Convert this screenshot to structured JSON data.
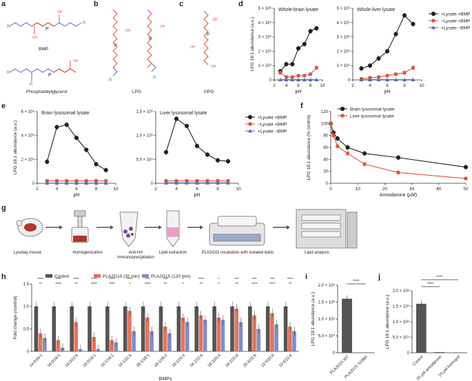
{
  "panel_labels": {
    "a": "a",
    "b": "b",
    "c": "c",
    "d": "d",
    "e": "e",
    "f": "f",
    "g": "g",
    "h": "h",
    "i": "i",
    "j": "j"
  },
  "structures": {
    "bmp": "BMP",
    "pg": "Phosphatidylglycerol",
    "lpg": "LPG",
    "gpg": "GPG"
  },
  "workflow": {
    "steps": [
      {
        "id": "lysotag",
        "label": "Lysotag mouse"
      },
      {
        "id": "homog",
        "label": "Homogenization"
      },
      {
        "id": "ip",
        "label": "Anti-HA immunoprecipitation"
      },
      {
        "id": "extract",
        "label": "Lipid extraction"
      },
      {
        "id": "incub",
        "label": "PLA2G15 incubation with isolated lipids"
      },
      {
        "id": "analysis",
        "label": "Lipid analysis"
      }
    ]
  },
  "chart_data": [
    {
      "id": "d1",
      "type": "line",
      "title": "Whole-brain lysate",
      "ylabel": "LPG 18:1 abundance (a.u.)",
      "xlabel": "pH",
      "xlim": [
        2,
        10
      ],
      "ylim": [
        0,
        5000000
      ],
      "xticks": [
        "2",
        "4",
        "6",
        "8",
        "10"
      ],
      "yticks": [
        "0",
        "1 × 10⁶",
        "2 × 10⁶",
        "3 × 10⁶",
        "4 × 10⁶",
        "5 × 10⁶"
      ],
      "series": [
        {
          "name": "+Lysate +BMP",
          "color": "#222222",
          "marker": "circle",
          "x": [
            3,
            4,
            5,
            6,
            7,
            8,
            9
          ],
          "values": [
            600000,
            1100000,
            1100000,
            2200000,
            2500000,
            3400000,
            3600000
          ]
        },
        {
          "name": "−Lysate +BMP",
          "color": "#e0533f",
          "marker": "square",
          "x": [
            3,
            4,
            5,
            6,
            7,
            8,
            9
          ],
          "values": [
            500000,
            200000,
            200000,
            300000,
            300000,
            400000,
            850000
          ]
        },
        {
          "name": "+Lysate −BMP",
          "color": "#5b6fb4",
          "marker": "triangle",
          "x": [
            3,
            4,
            5,
            6,
            7,
            8,
            9
          ],
          "values": [
            20000,
            20000,
            20000,
            20000,
            20000,
            20000,
            20000
          ]
        }
      ]
    },
    {
      "id": "d2",
      "type": "line",
      "title": "Whole-liver lysate",
      "xlabel": "pH",
      "xlim": [
        2,
        10
      ],
      "ylim": [
        0,
        5000000
      ],
      "xticks": [
        "2",
        "4",
        "6",
        "8",
        "10"
      ],
      "yticks": [
        "0",
        "1 × 10⁶",
        "2 × 10⁶",
        "3 × 10⁶",
        "4 × 10⁶",
        "5 × 10⁶"
      ],
      "legend": [
        "+Lysate +BMP",
        "−Lysate +BMP",
        "+Lysate −BMP"
      ],
      "series": [
        {
          "name": "+Lysate +BMP",
          "color": "#222222",
          "marker": "circle",
          "x": [
            3,
            4,
            5,
            6,
            7,
            8,
            9
          ],
          "values": [
            800000,
            1000000,
            1500000,
            2000000,
            3200000,
            4500000,
            3900000
          ]
        },
        {
          "name": "−Lysate +BMP",
          "color": "#e0533f",
          "marker": "square",
          "x": [
            3,
            4,
            5,
            6,
            7,
            8,
            9
          ],
          "values": [
            80000,
            150000,
            200000,
            300000,
            400000,
            500000,
            850000
          ]
        },
        {
          "name": "+Lysate −BMP",
          "color": "#5b6fb4",
          "marker": "triangle",
          "x": [
            3,
            4,
            5,
            6,
            7,
            8,
            9
          ],
          "values": [
            20000,
            20000,
            20000,
            20000,
            20000,
            20000,
            20000
          ]
        }
      ]
    },
    {
      "id": "e1",
      "type": "line",
      "title": "Brain lysosomal lysate",
      "ylabel": "LPG 18:1 abundance (a.u.)",
      "xlabel": "pH",
      "xlim": [
        2,
        10
      ],
      "ylim": [
        0,
        6000000
      ],
      "xticks": [
        "2",
        "4",
        "6",
        "8",
        "10"
      ],
      "yticks": [
        "0",
        "2 × 10⁶",
        "4 × 10⁶",
        "6 × 10⁶"
      ],
      "series": [
        {
          "name": "+Lysate +BMP",
          "color": "#222222",
          "marker": "circle",
          "x": [
            3,
            4,
            5,
            6,
            7,
            8,
            9
          ],
          "values": [
            1800000,
            4700000,
            4900000,
            3800000,
            2800000,
            1600000,
            1100000
          ]
        },
        {
          "name": "−Lysate +BMP",
          "color": "#e0533f",
          "marker": "square",
          "x": [
            3,
            4,
            5,
            6,
            7,
            8,
            9
          ],
          "values": [
            200000,
            200000,
            200000,
            200000,
            200000,
            200000,
            200000
          ]
        },
        {
          "name": "+Lysate −BMP",
          "color": "#5b6fb4",
          "marker": "triangle",
          "x": [
            3,
            4,
            5,
            6,
            7,
            8,
            9
          ],
          "values": [
            20000,
            20000,
            20000,
            20000,
            20000,
            20000,
            20000
          ]
        }
      ]
    },
    {
      "id": "e2",
      "type": "line",
      "title": "Liver lysosomal lysate",
      "xlabel": "pH",
      "xlim": [
        2,
        10
      ],
      "ylim": [
        0,
        1500000
      ],
      "xticks": [
        "2",
        "4",
        "6",
        "8",
        "10"
      ],
      "yticks": [
        "0",
        "5.0 × 10⁵",
        "1.0 × 10⁶",
        "1.5 × 10⁶"
      ],
      "legend": [
        "+Lysate +BMP",
        "−Lysate +BMP",
        "+Lysate −BMP"
      ],
      "series": [
        {
          "name": "+Lysate +BMP",
          "color": "#222222",
          "marker": "circle",
          "x": [
            3,
            4,
            5,
            6,
            7,
            8,
            9
          ],
          "values": [
            650000,
            1350000,
            1200000,
            780000,
            600000,
            480000,
            460000
          ]
        },
        {
          "name": "−Lysate +BMP",
          "color": "#e0533f",
          "marker": "square",
          "x": [
            3,
            4,
            5,
            6,
            7,
            8,
            9
          ],
          "values": [
            50000,
            50000,
            50000,
            50000,
            50000,
            50000,
            50000
          ]
        },
        {
          "name": "+Lysate −BMP",
          "color": "#5b6fb4",
          "marker": "triangle",
          "x": [
            3,
            4,
            5,
            6,
            7,
            8,
            9
          ],
          "values": [
            10000,
            10000,
            10000,
            10000,
            10000,
            10000,
            10000
          ]
        }
      ]
    },
    {
      "id": "f",
      "type": "line",
      "title": "",
      "ylabel": "LPG 18:1 abundance (% control)",
      "xlabel": "Amiodarone (µM)",
      "xlim": [
        0,
        50
      ],
      "ylim": [
        0,
        120
      ],
      "xticks": [
        "0",
        "10",
        "20",
        "30",
        "40",
        "50"
      ],
      "yticks": [
        "0",
        "20",
        "40",
        "60",
        "80",
        "100",
        "120"
      ],
      "legend": [
        "Brain lysosomal lysate",
        "Liver lysosomal lysate"
      ],
      "series": [
        {
          "name": "Brain lysosomal lysate",
          "color": "#222222",
          "marker": "circle",
          "x": [
            0,
            1,
            2.5,
            6.25,
            12.5,
            25,
            50
          ],
          "values": [
            100,
            85,
            75,
            60,
            50,
            43,
            27
          ]
        },
        {
          "name": "Liver lysosomal lysate",
          "color": "#e0533f",
          "marker": "square",
          "x": [
            0,
            1,
            2.5,
            6.25,
            12.5,
            25,
            50
          ],
          "values": [
            100,
            80,
            62,
            50,
            32,
            18,
            8
          ]
        }
      ]
    },
    {
      "id": "h",
      "type": "bar",
      "title": "",
      "ylabel": "Fold change (/control)",
      "xlabel": "BMPs",
      "ylim": [
        0,
        1.5
      ],
      "yticks": [
        "0",
        "0.5",
        "1.0",
        "1.5"
      ],
      "legend": [
        "Control",
        "PLA2G15 (30 min)",
        "PLA2G15 (120 min)"
      ],
      "categories": [
        "14:0/18:1",
        "16:0/18:1",
        "16:0/22:6",
        "16:0/18:1",
        "16:1/18:1",
        "16:1/22:6",
        "18:1/18:1",
        "18:1/18:2",
        "18:1/20:4",
        "18:1/22:6",
        "18:2/20:4",
        "18:2/22:6",
        "20:4/22:6",
        "22:5/22:6",
        "22:6/22:6"
      ],
      "series": [
        {
          "name": "Control",
          "color": "#555555",
          "values": [
            1,
            1,
            1,
            1,
            1,
            1,
            1,
            1,
            1,
            1,
            1,
            1,
            1,
            1,
            1
          ]
        },
        {
          "name": "PLA2G15 (30 min)",
          "color": "#e8735a",
          "values": [
            0.4,
            0.25,
            0.65,
            0.32,
            0.25,
            0.9,
            0.75,
            0.55,
            0.75,
            0.8,
            0.75,
            0.95,
            0.8,
            0.85,
            0.55
          ]
        },
        {
          "name": "PLA2G15 (120 min)",
          "color": "#7f8ec9",
          "values": [
            0.3,
            0.08,
            0.05,
            0.05,
            0.2,
            0.45,
            0.45,
            0.4,
            0.65,
            0.7,
            0.7,
            0.65,
            0.5,
            0.6,
            0.45
          ]
        }
      ],
      "sig_top": [
        "****",
        "****",
        "****",
        "****",
        "****",
        "****",
        "***",
        "***",
        "*",
        "****",
        "*",
        "***",
        "***",
        "***",
        "****"
      ],
      "sig_bottom": [
        "**",
        "****",
        "**",
        "****",
        "****",
        "*",
        "****",
        "**",
        "*",
        "**",
        "*",
        "**",
        "****",
        "****",
        "**"
      ]
    },
    {
      "id": "i",
      "type": "bar",
      "title": "",
      "ylabel": "LPG 18:1 abundance (a.u.)",
      "ylim": [
        0,
        2000000
      ],
      "yticks": [
        "0",
        "5.0 × 10⁵",
        "1.0 × 10⁶",
        "1.5 × 10⁶",
        "2.0 × 10⁶"
      ],
      "categories": [
        "PLA2G15 WT",
        "PLA2G15 S198A"
      ],
      "values": [
        1600000,
        10000
      ],
      "sig": "****"
    },
    {
      "id": "j",
      "type": "bar",
      "title": "",
      "ylabel": "LPG 18:1 abundance (a.u.)",
      "ylim": [
        0,
        2000000
      ],
      "yticks": [
        "0",
        "5.0 × 10⁵",
        "1.0 × 10⁶",
        "1.5 × 10⁶",
        "2.0 × 10⁶"
      ],
      "categories": [
        "Control",
        "20 µM amiodarone",
        "20 µM fosinopril"
      ],
      "values": [
        1580000,
        20000,
        10000
      ],
      "sig": [
        "****",
        "****"
      ]
    }
  ]
}
